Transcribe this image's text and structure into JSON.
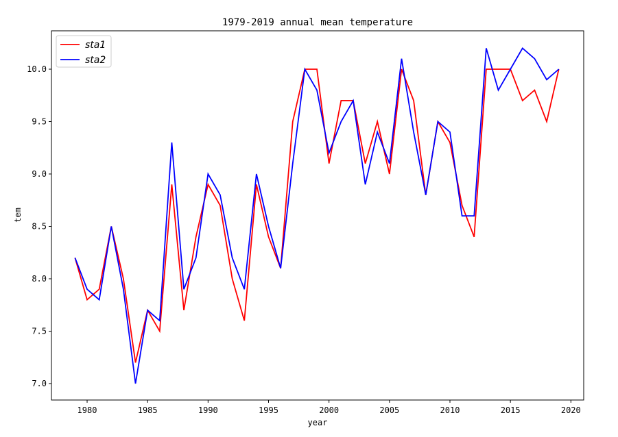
{
  "chart_data": {
    "type": "line",
    "title": "1979-2019 annual mean temperature",
    "xlabel": "year",
    "ylabel": "tem",
    "x": [
      1979,
      1980,
      1981,
      1982,
      1983,
      1984,
      1985,
      1986,
      1987,
      1988,
      1989,
      1990,
      1991,
      1992,
      1993,
      1994,
      1995,
      1996,
      1997,
      1998,
      1999,
      2000,
      2001,
      2002,
      2003,
      2004,
      2005,
      2006,
      2007,
      2008,
      2009,
      2010,
      2011,
      2012,
      2013,
      2014,
      2015,
      2016,
      2017,
      2018,
      2019
    ],
    "series": [
      {
        "name": "sta1",
        "color": "#ff0000",
        "values": [
          8.2,
          7.8,
          7.9,
          8.5,
          8.0,
          7.2,
          7.7,
          7.5,
          8.9,
          7.7,
          8.4,
          8.9,
          8.7,
          8.0,
          7.6,
          8.9,
          8.4,
          8.1,
          9.5,
          10.0,
          10.0,
          9.1,
          9.7,
          9.7,
          9.1,
          9.5,
          9.0,
          10.0,
          9.7,
          8.8,
          9.5,
          9.3,
          8.7,
          8.4,
          10.0,
          10.0,
          10.0,
          9.7,
          9.8,
          9.5,
          10.0
        ]
      },
      {
        "name": "sta2",
        "color": "#0000ff",
        "values": [
          8.2,
          7.9,
          7.8,
          8.5,
          7.9,
          7.0,
          7.7,
          7.6,
          9.3,
          7.9,
          8.2,
          9.0,
          8.8,
          8.2,
          7.9,
          9.0,
          8.5,
          8.1,
          9.1,
          10.0,
          9.8,
          9.2,
          9.5,
          9.7,
          8.9,
          9.4,
          9.1,
          10.1,
          9.4,
          8.8,
          9.5,
          9.4,
          8.6,
          8.6,
          10.2,
          9.8,
          10.0,
          10.2,
          10.1,
          9.9,
          10.0
        ]
      }
    ],
    "xlim": [
      1977.05,
      2021.06
    ],
    "xticks": [
      1980,
      1985,
      1990,
      1995,
      2000,
      2005,
      2010,
      2015,
      2020
    ],
    "ylim": [
      6.843,
      10.366
    ],
    "yticks": [
      {
        "value": 7,
        "label": "7.0"
      },
      7.5,
      {
        "value": 8,
        "label": "8.0"
      },
      8.5,
      {
        "value": 9,
        "label": "9.0"
      },
      9.5,
      {
        "value": 10,
        "label": "10.0"
      }
    ],
    "legend": "upper left"
  }
}
